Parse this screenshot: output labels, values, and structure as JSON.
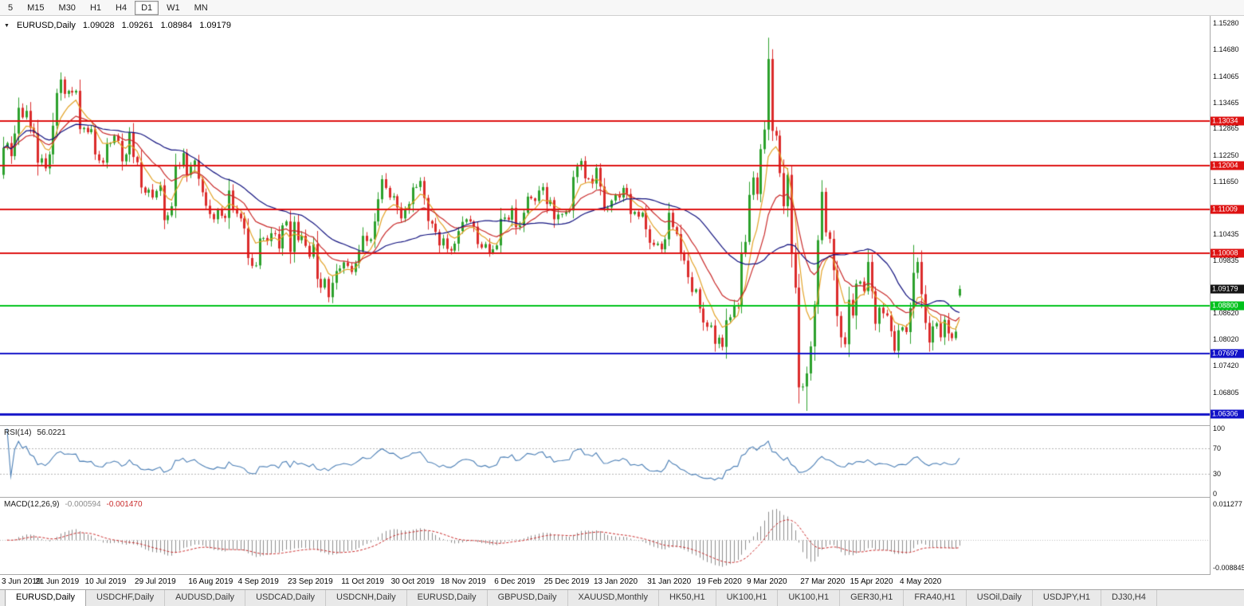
{
  "toolbar": {
    "timeframes": [
      {
        "label": "5",
        "active": false
      },
      {
        "label": "M15",
        "active": false
      },
      {
        "label": "M30",
        "active": false
      },
      {
        "label": "H1",
        "active": false
      },
      {
        "label": "H4",
        "active": false
      },
      {
        "label": "D1",
        "active": true
      },
      {
        "label": "W1",
        "active": false
      },
      {
        "label": "MN",
        "active": false
      }
    ]
  },
  "header": {
    "dropdown_icon": "▼",
    "symbol": "EURUSD,Daily",
    "open": "1.09028",
    "high": "1.09261",
    "low": "1.08984",
    "close": "1.09179"
  },
  "price_axis": {
    "ticks": [
      "1.15280",
      "1.14680",
      "1.14065",
      "1.13465",
      "1.12865",
      "1.12250",
      "1.11650",
      "1.10435",
      "1.09835",
      "1.08620",
      "1.08020",
      "1.07420",
      "1.06805"
    ],
    "current_price": {
      "label": "1.09179",
      "value": 1.09179,
      "bg": "#161616",
      "fg": "#ffffff"
    }
  },
  "levels": [
    {
      "label": "1.13034",
      "value": 1.13034,
      "color": "#DE1212",
      "line_width": 2
    },
    {
      "label": "1.12004",
      "value": 1.12004,
      "color": "#DE1212",
      "line_width": 2
    },
    {
      "label": "1.11009",
      "value": 1.11009,
      "color": "#DE1212",
      "line_width": 2
    },
    {
      "label": "1.10008",
      "value": 1.10008,
      "color": "#DE1212",
      "line_width": 2
    },
    {
      "label": "1.08800",
      "value": 1.088,
      "color": "#00C21C",
      "line_width": 2
    },
    {
      "label": "1.07697",
      "value": 1.07697,
      "color": "#1212C8",
      "line_width": 2
    },
    {
      "label": "1.06306",
      "value": 1.06306,
      "color": "#1212C8",
      "line_width": 3
    }
  ],
  "rsi": {
    "name": "RSI(14)",
    "value": "56.0221",
    "period": 14,
    "line_color": "#4A7EB5",
    "axis_labels": [
      {
        "text": "100",
        "value": 100
      },
      {
        "text": "70",
        "value": 70
      },
      {
        "text": "30",
        "value": 30
      },
      {
        "text": "0",
        "value": 0
      }
    ],
    "guide_levels": [
      70,
      30
    ]
  },
  "macd": {
    "name": "MACD(12,26,9)",
    "main_value": "-0.000594",
    "signal_value": "-0.001470",
    "fast": 12,
    "slow": 26,
    "signal": 9,
    "histogram_color": "#8C8C8C",
    "signal_color": "#C92A2A",
    "axis_top": {
      "text": "0.011277",
      "value": 0.011277
    },
    "axis_bottom": {
      "text": "-0.008845",
      "value": -0.008845
    }
  },
  "date_axis": {
    "labels": [
      {
        "text": "3 Jun 2019",
        "index": 0
      },
      {
        "text": "21 Jun 2019",
        "index": 14
      },
      {
        "text": "10 Jul 2019",
        "index": 27
      },
      {
        "text": "29 Jul 2019",
        "index": 40
      },
      {
        "text": "16 Aug 2019",
        "index": 54
      },
      {
        "text": "4 Sep 2019",
        "index": 67
      },
      {
        "text": "23 Sep 2019",
        "index": 80
      },
      {
        "text": "11 Oct 2019",
        "index": 94
      },
      {
        "text": "30 Oct 2019",
        "index": 107
      },
      {
        "text": "18 Nov 2019",
        "index": 120
      },
      {
        "text": "6 Dec 2019",
        "index": 134
      },
      {
        "text": "25 Dec 2019",
        "index": 147
      },
      {
        "text": "13 Jan 2020",
        "index": 160
      },
      {
        "text": "31 Jan 2020",
        "index": 174
      },
      {
        "text": "19 Feb 2020",
        "index": 187
      },
      {
        "text": "9 Mar 2020",
        "index": 200
      },
      {
        "text": "27 Mar 2020",
        "index": 214
      },
      {
        "text": "15 Apr 2020",
        "index": 227
      },
      {
        "text": "4 May 2020",
        "index": 240
      }
    ]
  },
  "tabs": [
    {
      "label": "EURUSD,Daily",
      "active": true
    },
    {
      "label": "USDCHF,Daily",
      "active": false
    },
    {
      "label": "AUDUSD,Daily",
      "active": false
    },
    {
      "label": "USDCAD,Daily",
      "active": false
    },
    {
      "label": "USDCNH,Daily",
      "active": false
    },
    {
      "label": "EURUSD,Daily",
      "active": false
    },
    {
      "label": "GBPUSD,Daily",
      "active": false
    },
    {
      "label": "XAUUSD,Monthly",
      "active": false
    },
    {
      "label": "HK50,H1",
      "active": false
    },
    {
      "label": "UK100,H1",
      "active": false
    },
    {
      "label": "UK100,H1",
      "active": false
    },
    {
      "label": "GER30,H1",
      "active": false
    },
    {
      "label": "FRA40,H1",
      "active": false
    },
    {
      "label": "USOil,Daily",
      "active": false
    },
    {
      "label": "USDJPY,H1",
      "active": false
    },
    {
      "label": "DJ30,H4",
      "active": false
    }
  ],
  "chart_data": {
    "type": "candlestick",
    "symbol": "EURUSD",
    "timeframe": "Daily",
    "ylim": [
      1.0605,
      1.1545
    ],
    "first_open": 1.118,
    "up_color": "#2CA12C",
    "down_color": "#DB2B2B",
    "last_candle": {
      "open": 1.09028,
      "high": 1.09261,
      "low": 1.08984,
      "close": 1.09179
    },
    "spike_overrides": [
      {
        "index": 200,
        "high": 1.1495
      },
      {
        "index": 208,
        "low": 1.0655
      },
      {
        "index": 210,
        "low": 1.0638
      },
      {
        "index": 238,
        "high": 1.1019
      }
    ],
    "moving_averages": [
      {
        "type": "ema",
        "period": 7,
        "color": "#E2A226"
      },
      {
        "type": "ema",
        "period": 17,
        "color": "#C92A2A"
      },
      {
        "type": "sma",
        "period": 34,
        "color": "#10107E"
      }
    ],
    "closes": [
      1.1242,
      1.1253,
      1.1223,
      1.1275,
      1.1334,
      1.1312,
      1.1327,
      1.1288,
      1.1276,
      1.1208,
      1.1218,
      1.1195,
      1.1227,
      1.1293,
      1.1368,
      1.1399,
      1.1366,
      1.1373,
      1.1369,
      1.1373,
      1.1285,
      1.1288,
      1.1278,
      1.1285,
      1.1227,
      1.1213,
      1.1208,
      1.1251,
      1.1253,
      1.127,
      1.1258,
      1.1211,
      1.1227,
      1.1277,
      1.1221,
      1.1209,
      1.1151,
      1.1139,
      1.1146,
      1.1128,
      1.1143,
      1.1156,
      1.1076,
      1.1087,
      1.1108,
      1.1203,
      1.12,
      1.123,
      1.118,
      1.1199,
      1.1213,
      1.1171,
      1.114,
      1.1109,
      1.109,
      1.1078,
      1.11,
      1.1086,
      1.1081,
      1.1144,
      1.1101,
      1.1091,
      1.108,
      1.1057,
      1.0989,
      1.0971,
      1.0972,
      1.1034,
      1.1035,
      1.1028,
      1.1046,
      1.1044,
      1.1011,
      1.1064,
      1.1073,
      1.1003,
      1.1072,
      1.103,
      1.104,
      1.1017,
      1.0992,
      1.1021,
      1.0941,
      1.0921,
      1.0941,
      1.0899,
      1.0932,
      1.0959,
      1.0965,
      1.0979,
      1.0971,
      1.0957,
      1.0977,
      1.1005,
      1.104,
      1.1028,
      1.1032,
      1.1073,
      1.1124,
      1.117,
      1.115,
      1.1128,
      1.1131,
      1.1105,
      1.108,
      1.11,
      1.1113,
      1.1151,
      1.1152,
      1.1166,
      1.1127,
      1.1074,
      1.1068,
      1.1049,
      1.1018,
      1.1034,
      1.101,
      1.1006,
      1.1022,
      1.1051,
      1.1072,
      1.1078,
      1.1073,
      1.1061,
      1.1021,
      1.1013,
      1.1021,
      1.1001,
      1.1009,
      1.1018,
      1.1079,
      1.1082,
      1.1077,
      1.1104,
      1.106,
      1.1064,
      1.1093,
      1.113,
      1.1126,
      1.112,
      1.1144,
      1.1152,
      1.1113,
      1.1122,
      1.1078,
      1.1089,
      1.109,
      1.1095,
      1.1098,
      1.1175,
      1.1199,
      1.1212,
      1.1172,
      1.1171,
      1.116,
      1.1196,
      1.1153,
      1.1103,
      1.1105,
      1.1121,
      1.1134,
      1.1128,
      1.115,
      1.1136,
      1.109,
      1.1095,
      1.1084,
      1.1093,
      1.1055,
      1.1024,
      1.1019,
      1.1022,
      1.1009,
      1.1032,
      1.1093,
      1.106,
      1.1044,
      1.1,
      1.0983,
      1.0945,
      1.0911,
      1.0917,
      1.0873,
      1.0841,
      1.0831,
      1.0834,
      1.0792,
      1.0806,
      1.0785,
      1.0846,
      1.0853,
      1.0881,
      1.088,
      1.0999,
      1.1026,
      1.1134,
      1.1174,
      1.1136,
      1.1239,
      1.1284,
      1.1446,
      1.1281,
      1.127,
      1.1184,
      1.1108,
      1.118,
      1.0998,
      1.0921,
      1.0692,
      1.0694,
      1.0724,
      1.0786,
      1.0882,
      1.103,
      1.1141,
      1.1048,
      1.1033,
      1.0961,
      1.0856,
      1.0807,
      1.0791,
      1.0893,
      1.0857,
      1.093,
      1.0935,
      1.0913,
      1.098,
      1.0913,
      1.0838,
      1.0875,
      1.0862,
      1.0857,
      1.0821,
      1.0776,
      1.0823,
      1.083,
      1.0819,
      1.0874,
      1.0955,
      1.098,
      1.0906,
      1.084,
      1.0795,
      1.0832,
      1.0839,
      1.0807,
      1.0847,
      1.0816,
      1.0805,
      1.082,
      1.09179
    ]
  }
}
